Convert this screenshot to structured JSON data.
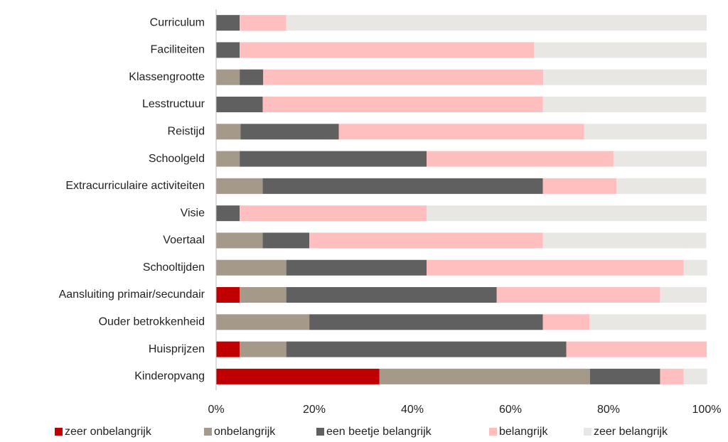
{
  "chart_data": {
    "type": "stacked-bar-horizontal",
    "categories": [
      "Curriculum",
      "Faciliteiten",
      "Klassengrootte",
      "Lesstructuur",
      "Reistijd",
      "Schoolgeld",
      "Extracurriculaire activiteiten",
      "Visie",
      "Voertaal",
      "Schooltijden",
      "Aansluiting primair/secundair",
      "Ouder betrokkenheid",
      "Huisprijzen",
      "Kinderopvang"
    ],
    "series": [
      {
        "name": "zeer onbelangrijk",
        "color": "#c00000",
        "values": [
          0,
          0,
          0,
          0,
          0,
          0,
          0,
          0,
          0,
          0,
          4.8,
          0,
          4.8,
          33.3
        ]
      },
      {
        "name": "onbelangrijk",
        "color": "#a5998a",
        "values": [
          0,
          0,
          4.8,
          0,
          5,
          4.8,
          9.5,
          0,
          9.5,
          14.3,
          9.5,
          19,
          9.5,
          42.9
        ]
      },
      {
        "name": "een beetje belangrijk",
        "color": "#606060",
        "values": [
          4.8,
          4.8,
          4.8,
          9.5,
          20,
          38.1,
          57.1,
          4.8,
          9.5,
          28.6,
          42.9,
          47.6,
          57.1,
          14.3
        ]
      },
      {
        "name": "belangrijk",
        "color": "#ffbfbf",
        "values": [
          9.5,
          60,
          57.1,
          57.1,
          50,
          38.1,
          15,
          38.1,
          47.6,
          52.4,
          33.3,
          9.5,
          28.6,
          4.8
        ]
      },
      {
        "name": "zeer belangrijk",
        "color": "#e9e7e4",
        "values": [
          85.7,
          35.2,
          33.3,
          33.3,
          25,
          19,
          18.3,
          57.1,
          33.3,
          4.8,
          9.5,
          23.8,
          0,
          4.8
        ]
      }
    ],
    "xlim": [
      0,
      100
    ],
    "xticks": [
      {
        "value": 0,
        "label": "0%"
      },
      {
        "value": 20,
        "label": "20%"
      },
      {
        "value": 40,
        "label": "40%"
      },
      {
        "value": 60,
        "label": "60%"
      },
      {
        "value": 80,
        "label": "80%"
      },
      {
        "value": 100,
        "label": "100%"
      }
    ],
    "legend": "bottom"
  }
}
